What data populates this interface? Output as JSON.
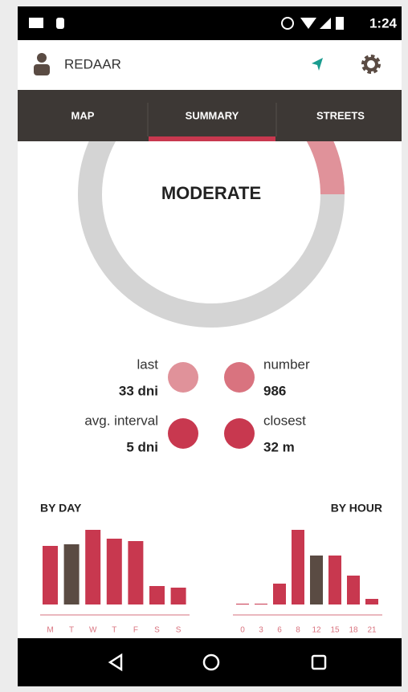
{
  "status_bar": {
    "time": "1:24"
  },
  "app_bar": {
    "title": "REDAAR"
  },
  "tabs": [
    "MAP",
    "SUMMARY",
    "STREETS"
  ],
  "summary": {
    "level": "MODERATE",
    "level_share": 25,
    "stats": [
      {
        "label": "last",
        "value": "33 dni"
      },
      {
        "label": "number",
        "value": "986"
      },
      {
        "label": "avg. interval",
        "value": "5 dni"
      },
      {
        "label": "closest",
        "value": "32 m"
      }
    ]
  },
  "charts": [
    {
      "type": "bar",
      "title": "BY DAY",
      "categories": [
        "M",
        "T",
        "W",
        "T",
        "F",
        "S",
        "S"
      ],
      "values": [
        73,
        75,
        93,
        82,
        79,
        23,
        21
      ],
      "colors": [
        "#c8384f",
        "#5a4b43",
        "#c8384f",
        "#c8384f",
        "#c8384f",
        "#c8384f",
        "#c8384f"
      ]
    },
    {
      "type": "bar",
      "title": "BY HOUR",
      "categories": [
        "0",
        "3",
        "6",
        "8",
        "12",
        "15",
        "18",
        "21"
      ],
      "values": [
        1,
        1,
        26,
        93,
        61,
        61,
        36,
        7
      ],
      "colors": [
        "#c8384f",
        "#c8384f",
        "#c8384f",
        "#c8384f",
        "#5a4b43",
        "#c8384f",
        "#c8384f",
        "#c8384f"
      ]
    }
  ]
}
